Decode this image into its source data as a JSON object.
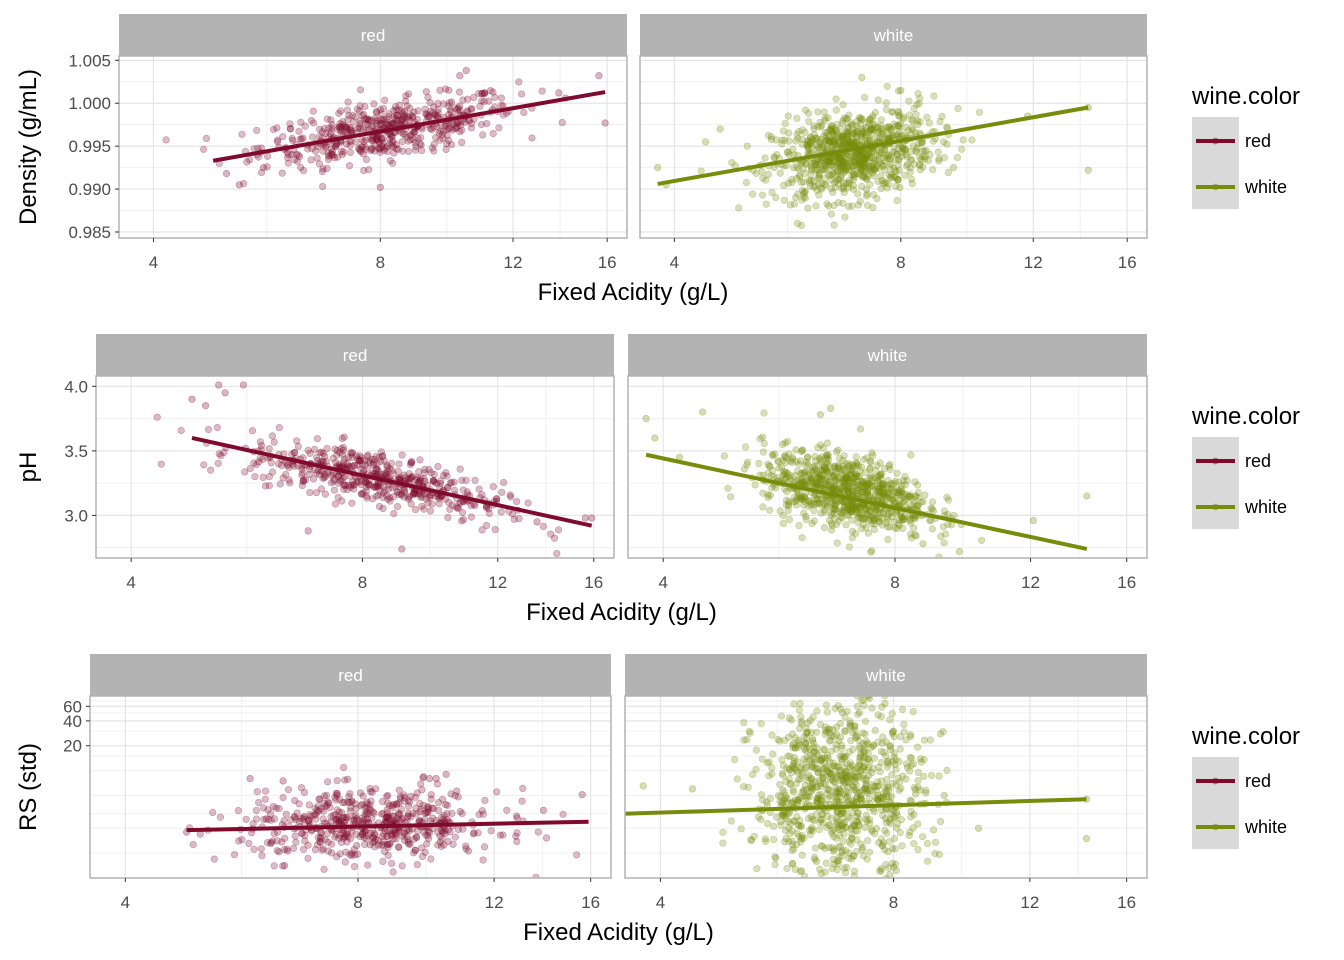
{
  "colors": {
    "red": "#7f0a2e",
    "white": "#778c0b",
    "strip": "#b3b3b3",
    "panel_border": "#b3b3b3",
    "grid": "#e5e5e5"
  },
  "legend": {
    "title": "wine.color",
    "entries": [
      {
        "label": "red",
        "color": "#7f0a2e"
      },
      {
        "label": "white",
        "color": "#778c0b"
      }
    ]
  },
  "chart_data": [
    {
      "type": "scatter",
      "ylabel": "Density (g/mL)",
      "xlabel": "Fixed Acidity (g/L)",
      "x_scale": "log10",
      "x_ticks": [
        4,
        8,
        12,
        16
      ],
      "x_tick_labels": [
        "4",
        "8",
        "12",
        "16"
      ],
      "xlim": [
        3.6,
        17.0
      ],
      "y_ticks": [
        0.985,
        0.99,
        0.995,
        1.0,
        1.005
      ],
      "y_tick_labels": [
        "0.985",
        "0.990",
        "0.995",
        "1.000",
        "1.005"
      ],
      "ylim": [
        0.9843,
        1.0055
      ],
      "grid": true,
      "legend_position": "right",
      "facets": [
        {
          "label": "red",
          "color_key": "red",
          "fit": [
            [
              4.8,
              0.9933
            ],
            [
              15.9,
              1.0013
            ]
          ],
          "cloud": {
            "center": [
              8.2,
              0.9968
            ],
            "spread": [
              1.6,
              0.0016
            ],
            "slope": 0.00072,
            "n": 520
          },
          "outliers": [
            [
              5.0,
              0.9918
            ],
            [
              5.2,
              0.9905
            ],
            [
              8.0,
              0.9902
            ],
            [
              10.2,
              1.0032
            ],
            [
              10.4,
              1.0038
            ],
            [
              15.6,
              1.0032
            ],
            [
              15.9,
              0.9977
            ],
            [
              13.8,
              1.0012
            ],
            [
              6.0,
              0.9948
            ],
            [
              5.6,
              0.9925
            ]
          ]
        },
        {
          "label": "white",
          "color_key": "white",
          "fit": [
            [
              3.8,
              0.9906
            ],
            [
              14.2,
              0.9995
            ]
          ],
          "cloud": {
            "center": [
              6.9,
              0.994
            ],
            "spread": [
              0.85,
              0.0025
            ],
            "slope": 0.0009,
            "n": 850
          },
          "outliers": [
            [
              3.8,
              0.9925
            ],
            [
              3.9,
              0.9905
            ],
            [
              4.4,
              0.9955
            ],
            [
              4.6,
              0.997
            ],
            [
              11.8,
              0.9985
            ],
            [
              14.2,
              0.9922
            ],
            [
              14.2,
              0.9995
            ],
            [
              7.1,
              1.003
            ],
            [
              8.0,
              1.0015
            ],
            [
              9.4,
              0.9925
            ]
          ]
        }
      ]
    },
    {
      "type": "scatter",
      "ylabel": "pH",
      "xlabel": "Fixed Acidity (g/L)",
      "x_scale": "log10",
      "x_ticks": [
        4,
        8,
        12,
        16
      ],
      "x_tick_labels": [
        "4",
        "8",
        "12",
        "16"
      ],
      "xlim": [
        3.6,
        17.0
      ],
      "y_ticks": [
        3.0,
        3.5,
        4.0
      ],
      "y_tick_labels": [
        "3.0",
        "3.5",
        "4.0"
      ],
      "ylim": [
        2.67,
        4.08
      ],
      "grid": true,
      "legend_position": "right",
      "facets": [
        {
          "label": "red",
          "color_key": "red",
          "fit": [
            [
              4.8,
              3.6
            ],
            [
              15.9,
              2.92
            ]
          ],
          "cloud": {
            "center": [
              8.3,
              3.3
            ],
            "spread": [
              1.6,
              0.1
            ],
            "slope": -0.063,
            "n": 520
          },
          "outliers": [
            [
              4.8,
              3.9
            ],
            [
              5.0,
              3.85
            ],
            [
              5.3,
              3.95
            ],
            [
              5.6,
              4.01
            ],
            [
              5.2,
              4.01
            ],
            [
              9.0,
              2.74
            ],
            [
              15.6,
              2.98
            ],
            [
              15.9,
              2.98
            ],
            [
              13.5,
              2.95
            ],
            [
              6.8,
              2.88
            ]
          ]
        },
        {
          "label": "white",
          "color_key": "white",
          "fit": [
            [
              3.8,
              3.47
            ],
            [
              14.2,
              2.74
            ]
          ],
          "cloud": {
            "center": [
              6.9,
              3.19
            ],
            "spread": [
              0.85,
              0.14
            ],
            "slope": -0.07,
            "n": 850
          },
          "outliers": [
            [
              3.8,
              3.75
            ],
            [
              3.9,
              3.6
            ],
            [
              4.5,
              3.8
            ],
            [
              4.2,
              3.45
            ],
            [
              14.2,
              3.15
            ],
            [
              12.1,
              2.96
            ],
            [
              9.7,
              2.72
            ],
            [
              8.7,
              2.78
            ],
            [
              6.6,
              3.83
            ],
            [
              6.4,
              3.78
            ]
          ]
        }
      ]
    },
    {
      "type": "scatter",
      "ylabel": "RS (std)",
      "xlabel": "Fixed Acidity (g/L)",
      "x_scale": "log10",
      "x_ticks": [
        4,
        8,
        12,
        16
      ],
      "x_tick_labels": [
        "4",
        "8",
        "12",
        "16"
      ],
      "xlim": [
        3.6,
        17.0
      ],
      "y_scale": "log10",
      "y_ticks": [
        20,
        40,
        60
      ],
      "y_tick_labels": [
        "20",
        "40",
        "60"
      ],
      "ylim": [
        0.5,
        80
      ],
      "grid": true,
      "legend_position": "right",
      "facets": [
        {
          "label": "red",
          "color_key": "red",
          "fit": [
            [
              4.8,
              1.9
            ],
            [
              15.9,
              2.4
            ]
          ],
          "cloud": {
            "center": [
              8.3,
              2.2
            ],
            "spread": [
              1.6,
              0.22
            ],
            "slope": 0.0,
            "n": 560
          },
          "outliers": [
            [
              5.8,
              8.0
            ],
            [
              6.4,
              7.5
            ],
            [
              7.5,
              5.3
            ],
            [
              9.9,
              8.0
            ],
            [
              10.1,
              8.0
            ],
            [
              10.4,
              9.0
            ],
            [
              15.6,
              5.1
            ],
            [
              13.9,
              3.3
            ],
            [
              4.8,
              1.8
            ],
            [
              5.0,
              1.7
            ]
          ]
        },
        {
          "label": "white",
          "color_key": "white",
          "fit": [
            [
              3.6,
              3.0
            ],
            [
              14.2,
              4.5
            ]
          ],
          "cloud": {
            "center": [
              6.8,
              5.5
            ],
            "spread": [
              0.85,
              0.55
            ],
            "slope": 0.0,
            "n": 900
          },
          "outliers": [
            [
              3.8,
              6.5
            ],
            [
              4.4,
              6.0
            ],
            [
              7.8,
              65.0
            ],
            [
              8.0,
              30.0
            ],
            [
              9.3,
              5.0
            ],
            [
              14.2,
              1.5
            ],
            [
              14.2,
              4.5
            ],
            [
              6.7,
              26.0
            ],
            [
              8.4,
              1.8
            ],
            [
              10.3,
              2.0
            ]
          ]
        }
      ]
    }
  ]
}
